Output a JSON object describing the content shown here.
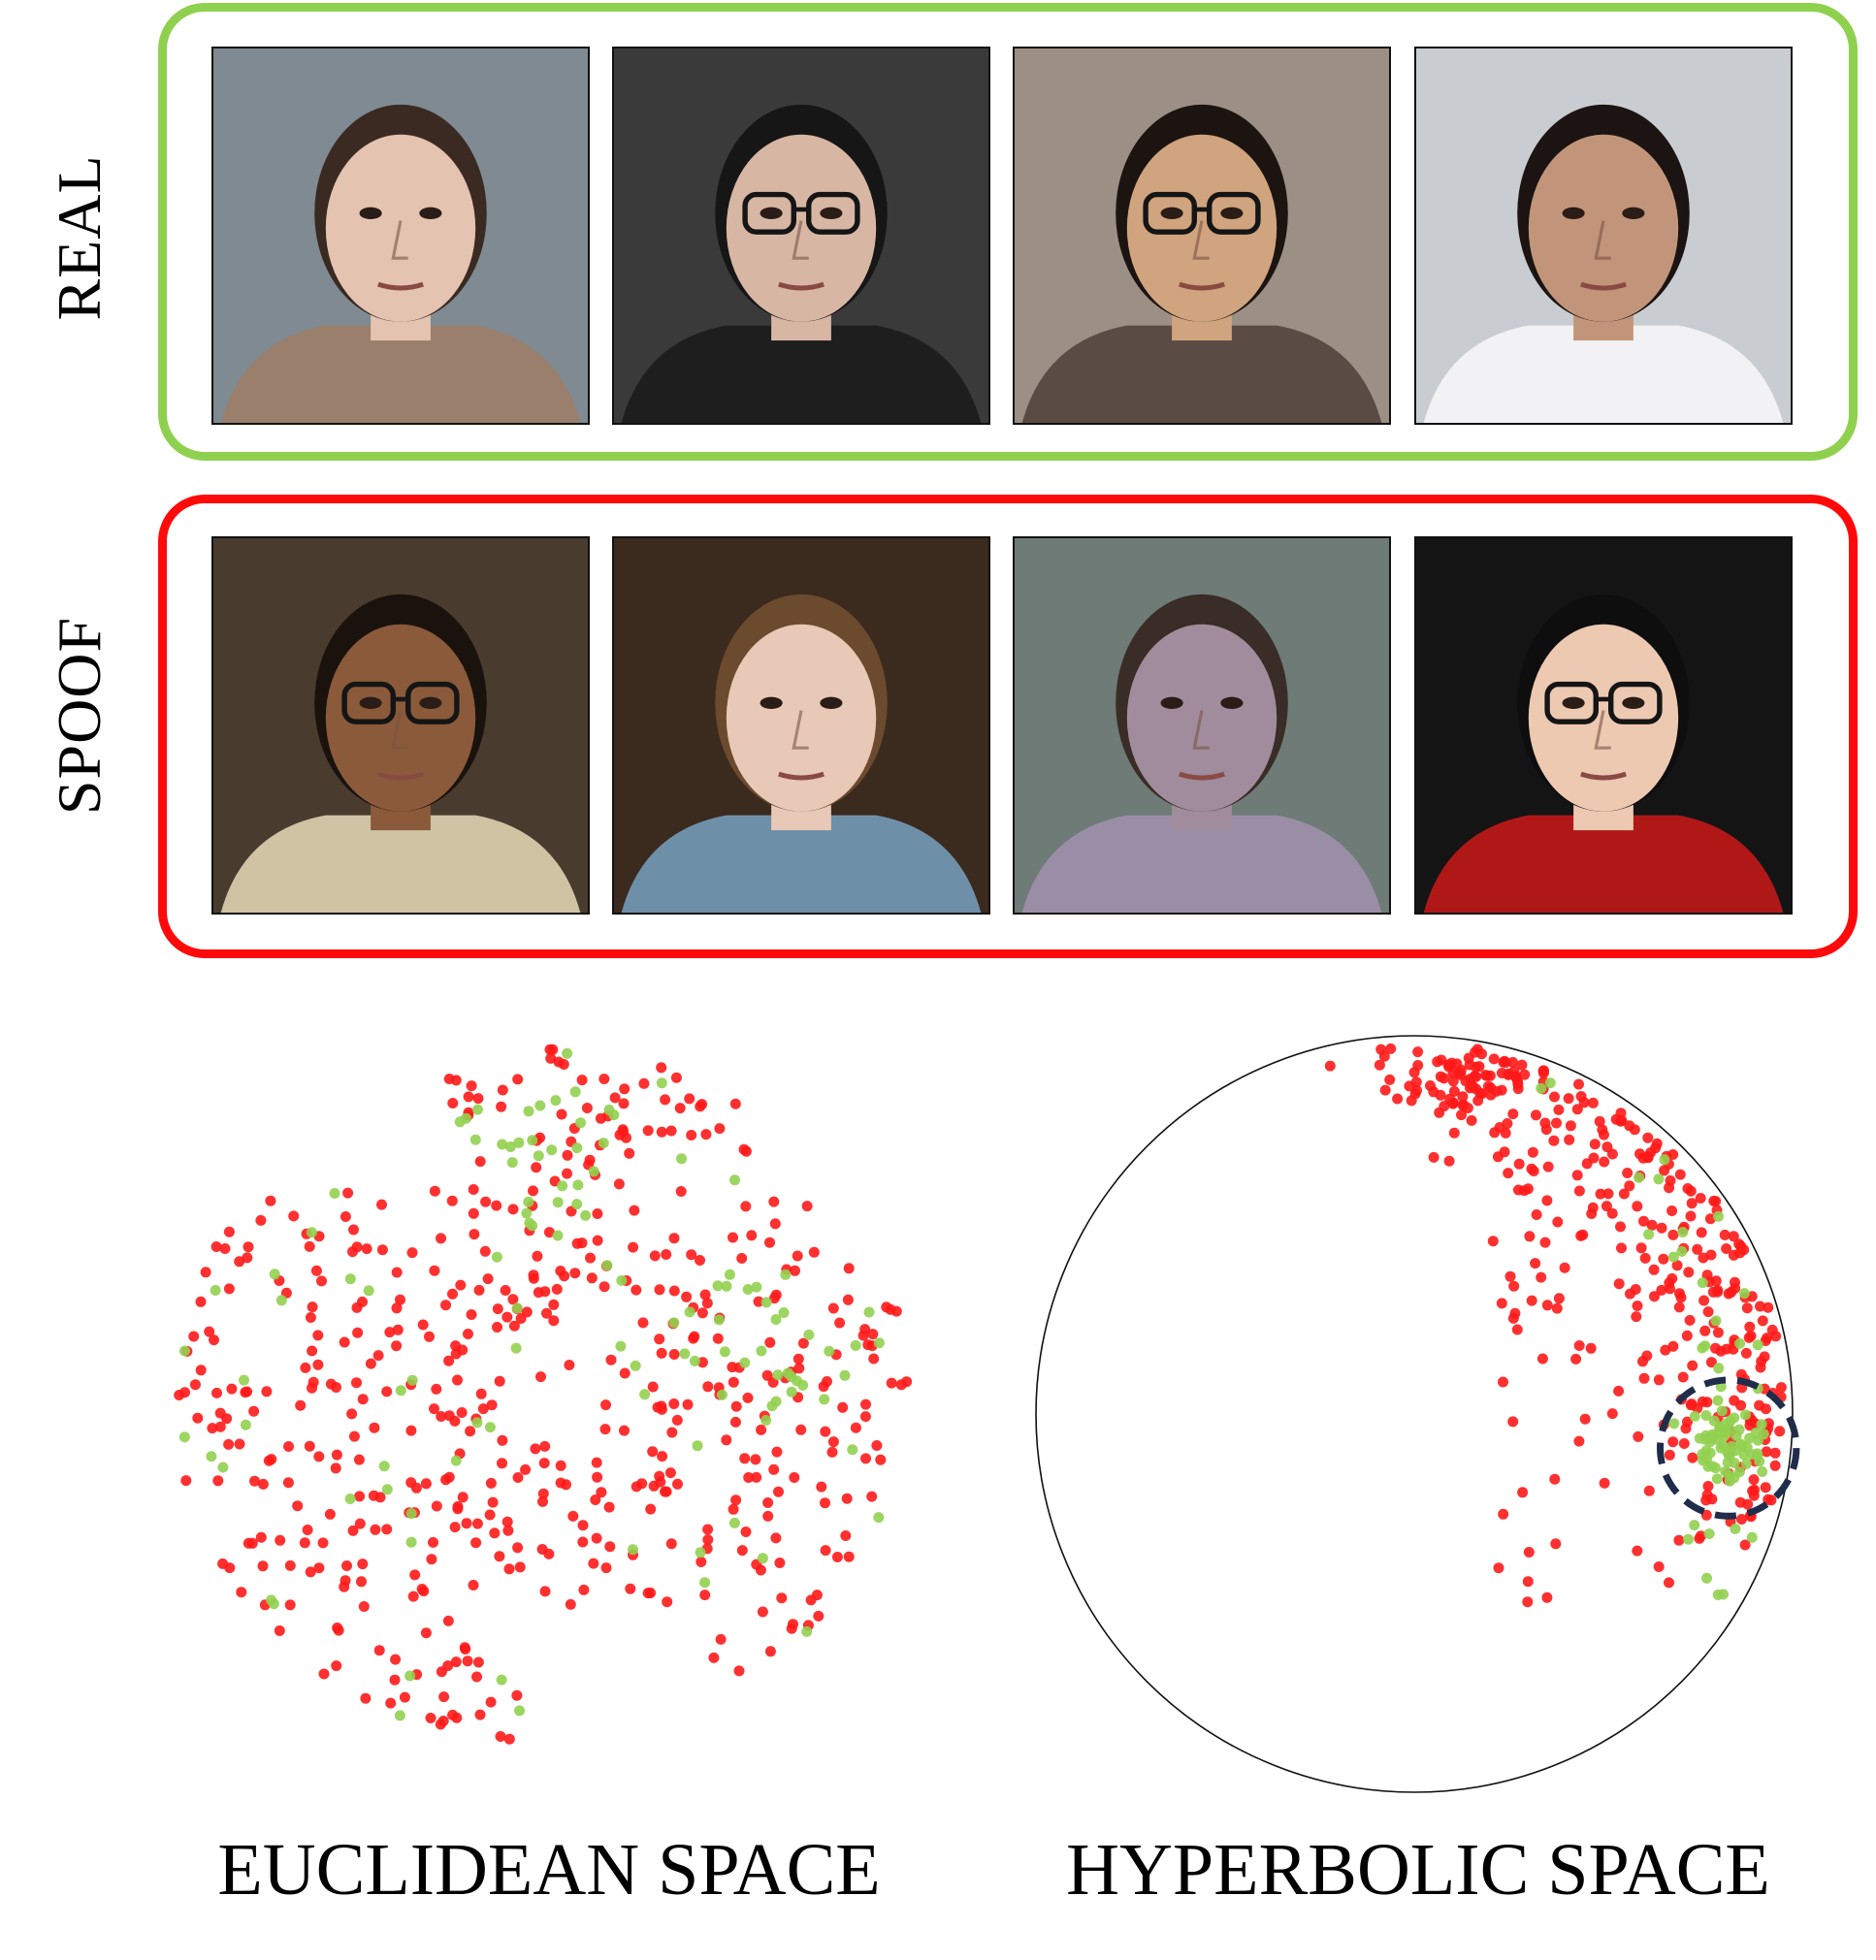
{
  "rows": {
    "real": {
      "label": "REAL",
      "border_color": "#8fd14f"
    },
    "spoof": {
      "label": "SPOOF",
      "border_color": "#ff0a0a"
    }
  },
  "faces": {
    "real": [
      {
        "bg": "#7f8a92",
        "skin": "#e4c3b0",
        "hair": "#3a2a22",
        "cloth": "#9a7f6c",
        "glasses": false
      },
      {
        "bg": "#3a3a3a",
        "skin": "#d8b6a4",
        "hair": "#161616",
        "cloth": "#1e1e1e",
        "glasses": true
      },
      {
        "bg": "#9c8f85",
        "skin": "#d0a47e",
        "hair": "#1c1410",
        "cloth": "#5a4c44",
        "glasses": true
      },
      {
        "bg": "#c9ccd0",
        "skin": "#c2957a",
        "hair": "#1c1412",
        "cloth": "#f2f2f4",
        "glasses": false
      }
    ],
    "spoof": [
      {
        "bg": "#4a3b2f",
        "skin": "#8a5a3a",
        "hair": "#1a120c",
        "cloth": "#cfc3a4",
        "glasses": true
      },
      {
        "bg": "#3b2a1e",
        "skin": "#e8c8b6",
        "hair": "#6b4a2e",
        "cloth": "#6e8fa8",
        "glasses": false
      },
      {
        "bg": "#6e7b76",
        "skin": "#a08c9c",
        "hair": "#3a2c26",
        "cloth": "#9a8ea6",
        "glasses": false
      },
      {
        "bg": "#141414",
        "skin": "#edc9b2",
        "hair": "#0e0e0e",
        "cloth": "#b01818",
        "glasses": true
      }
    ]
  },
  "colors": {
    "real": "#92d050",
    "spoof": "#ff1a1a",
    "highlight": "#1f2d4a"
  },
  "chart_data": [
    {
      "type": "scatter",
      "title": "EUCLIDEAN SPACE",
      "xlim": [
        -1,
        1
      ],
      "ylim": [
        -1,
        1
      ],
      "series": [
        {
          "class": "spoof",
          "color": "#ff1a1a",
          "generator": "euclid",
          "count": 520,
          "seed": 11
        },
        {
          "class": "real",
          "color": "#92d050",
          "generator": "euclid",
          "count": 115,
          "seed": 23
        }
      ]
    },
    {
      "type": "scatter",
      "title": "HYPERBOLIC SPACE",
      "boundary": "circle",
      "xlim": [
        -1,
        1
      ],
      "ylim": [
        -1,
        1
      ],
      "series": [
        {
          "class": "spoof",
          "color": "#ff1a1a",
          "generator": "hyper",
          "count": 380,
          "seed": 37
        },
        {
          "class": "real",
          "color": "#92d050",
          "generator": "hyper",
          "count": 95,
          "seed": 51
        }
      ],
      "highlight_region": {
        "cx": 0.83,
        "cy": -0.09,
        "r": 0.18
      }
    }
  ]
}
